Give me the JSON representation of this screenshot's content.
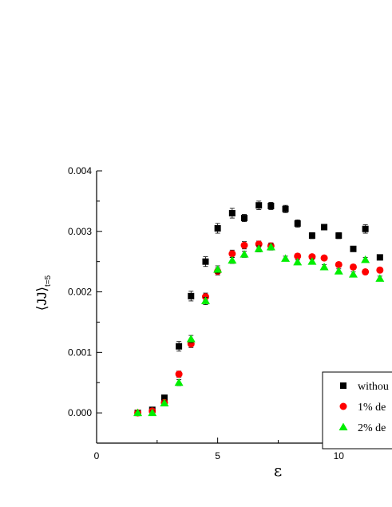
{
  "chart_data": {
    "type": "scatter",
    "xlabel": "ε",
    "ylabel": "⟨JJ⟩",
    "ylabel_subscript": "t=5",
    "xlim": [
      0,
      12.2
    ],
    "ylim": [
      -0.0005,
      0.004
    ],
    "xticks": [
      0,
      5,
      10
    ],
    "yticks": [
      0.0,
      0.001,
      0.002,
      0.003,
      0.004
    ],
    "xtick_labels": [
      "0",
      "5",
      "10"
    ],
    "ytick_labels": [
      "0.000",
      "0.001",
      "0.002",
      "0.003",
      "0.004"
    ],
    "grid": false,
    "legend_position": "bottom-right",
    "series": [
      {
        "name": "withou",
        "color": "#000000",
        "marker": "square",
        "x": [
          1.7,
          2.3,
          2.8,
          3.4,
          3.9,
          4.5,
          5.0,
          5.6,
          6.1,
          6.7,
          7.2,
          7.8,
          8.3,
          8.9,
          9.4,
          10.0,
          10.6,
          11.1,
          11.7
        ],
        "y": [
          0.0,
          5e-05,
          0.00025,
          0.0011,
          0.00193,
          0.0025,
          0.00305,
          0.0033,
          0.00322,
          0.00343,
          0.00342,
          0.00337,
          0.00313,
          0.00293,
          0.00307,
          0.00293,
          0.00271,
          0.00304,
          0.00257
        ],
        "err": [
          3e-05,
          3e-05,
          4e-05,
          8e-05,
          8e-05,
          8e-05,
          8e-05,
          8e-05,
          6e-05,
          7e-05,
          6e-05,
          6e-05,
          6e-05,
          5e-05,
          4e-05,
          5e-05,
          4e-05,
          7e-05,
          4e-05
        ]
      },
      {
        "name": "1% de",
        "color": "#ff0000",
        "marker": "circle",
        "x": [
          1.7,
          2.3,
          2.8,
          3.4,
          3.9,
          4.5,
          5.0,
          5.6,
          6.1,
          6.7,
          7.2,
          8.3,
          8.9,
          9.4,
          10.0,
          10.6,
          11.1,
          11.7
        ],
        "y": [
          0.0,
          3e-05,
          0.00017,
          0.00064,
          0.00114,
          0.00192,
          0.00234,
          0.00263,
          0.00277,
          0.00279,
          0.00276,
          0.00259,
          0.00258,
          0.00256,
          0.00245,
          0.00241,
          0.00233,
          0.00236
        ],
        "err": [
          3e-05,
          3e-05,
          4e-05,
          5e-05,
          6e-05,
          6e-05,
          6e-05,
          6e-05,
          6e-05,
          5e-05,
          5e-05,
          4e-05,
          4e-05,
          4e-05,
          4e-05,
          4e-05,
          4e-05,
          4e-05
        ]
      },
      {
        "name": "2% de",
        "color": "#00ee00",
        "marker": "triangle",
        "x": [
          1.7,
          2.3,
          2.8,
          3.4,
          3.9,
          4.5,
          5.0,
          5.6,
          6.1,
          6.7,
          7.2,
          7.8,
          8.3,
          8.9,
          9.4,
          10.0,
          10.6,
          11.1,
          11.7
        ],
        "y": [
          0.0,
          0.0,
          0.00016,
          0.0005,
          0.00122,
          0.00185,
          0.00237,
          0.00252,
          0.00262,
          0.00271,
          0.00274,
          0.00255,
          0.00249,
          0.0025,
          0.00241,
          0.00234,
          0.00229,
          0.00253,
          0.00222
        ],
        "err": [
          3e-05,
          3e-05,
          4e-05,
          5e-05,
          6e-05,
          6e-05,
          6e-05,
          5e-05,
          5e-05,
          5e-05,
          5e-05,
          4e-05,
          4e-05,
          4e-05,
          4e-05,
          4e-05,
          4e-05,
          4e-05,
          4e-05
        ]
      }
    ]
  }
}
